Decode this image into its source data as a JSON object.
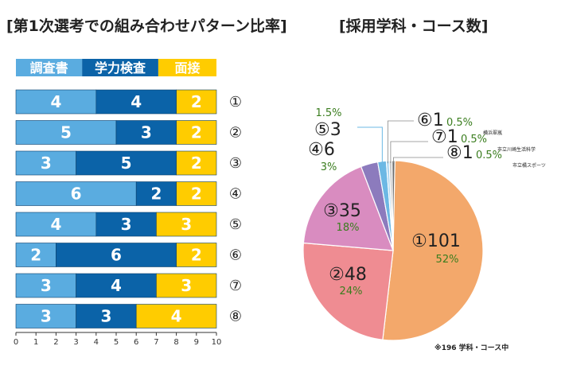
{
  "chart_data": [
    {
      "type": "bar",
      "title": "[第1次選考での組み合わせパターン比率]",
      "series": [
        {
          "name": "調査書",
          "values": [
            4,
            5,
            3,
            6,
            4,
            2,
            3,
            3
          ],
          "color": "#5aace0"
        },
        {
          "name": "学力検査",
          "values": [
            4,
            3,
            5,
            2,
            3,
            6,
            4,
            3
          ],
          "color": "#0b63a8"
        },
        {
          "name": "面接",
          "values": [
            2,
            2,
            2,
            2,
            3,
            2,
            3,
            4
          ],
          "color": "#ffcc00"
        }
      ],
      "categories": [
        "①",
        "②",
        "③",
        "④",
        "⑤",
        "⑥",
        "⑦",
        "⑧"
      ],
      "xlim": [
        0,
        10
      ],
      "xticks": [
        "0",
        "1",
        "2",
        "3",
        "4",
        "5",
        "6",
        "7",
        "8",
        "9",
        "10"
      ],
      "legend_position": "top"
    },
    {
      "type": "pie",
      "title": "[採用学科・コース数]",
      "slices": [
        {
          "label": "①101",
          "value": 101,
          "pct": "52%",
          "color": "#f3a86b"
        },
        {
          "label": "②48",
          "value": 48,
          "pct": "24%",
          "color": "#ef8c92"
        },
        {
          "label": "③35",
          "value": 35,
          "pct": "18%",
          "color": "#d98cc0"
        },
        {
          "label": "④6",
          "value": 6,
          "pct": "3%",
          "color": "#8c7bbd"
        },
        {
          "label": "⑤3",
          "value": 3,
          "pct": "1.5%",
          "color": "#6cb8e4"
        },
        {
          "label": "⑥1",
          "value": 1,
          "pct": "0.5%",
          "color": "#a9d4ef",
          "sub": "横浜翠嵐"
        },
        {
          "label": "⑦1",
          "value": 1,
          "pct": "0.5%",
          "color": "#c9c9c9",
          "sub": "市立川崎生活科学"
        },
        {
          "label": "⑧1",
          "value": 1,
          "pct": "0.5%",
          "color": "#6f6f6f",
          "sub": "市立橘スポーツ"
        }
      ],
      "note": "※196 学科・コース中"
    }
  ]
}
